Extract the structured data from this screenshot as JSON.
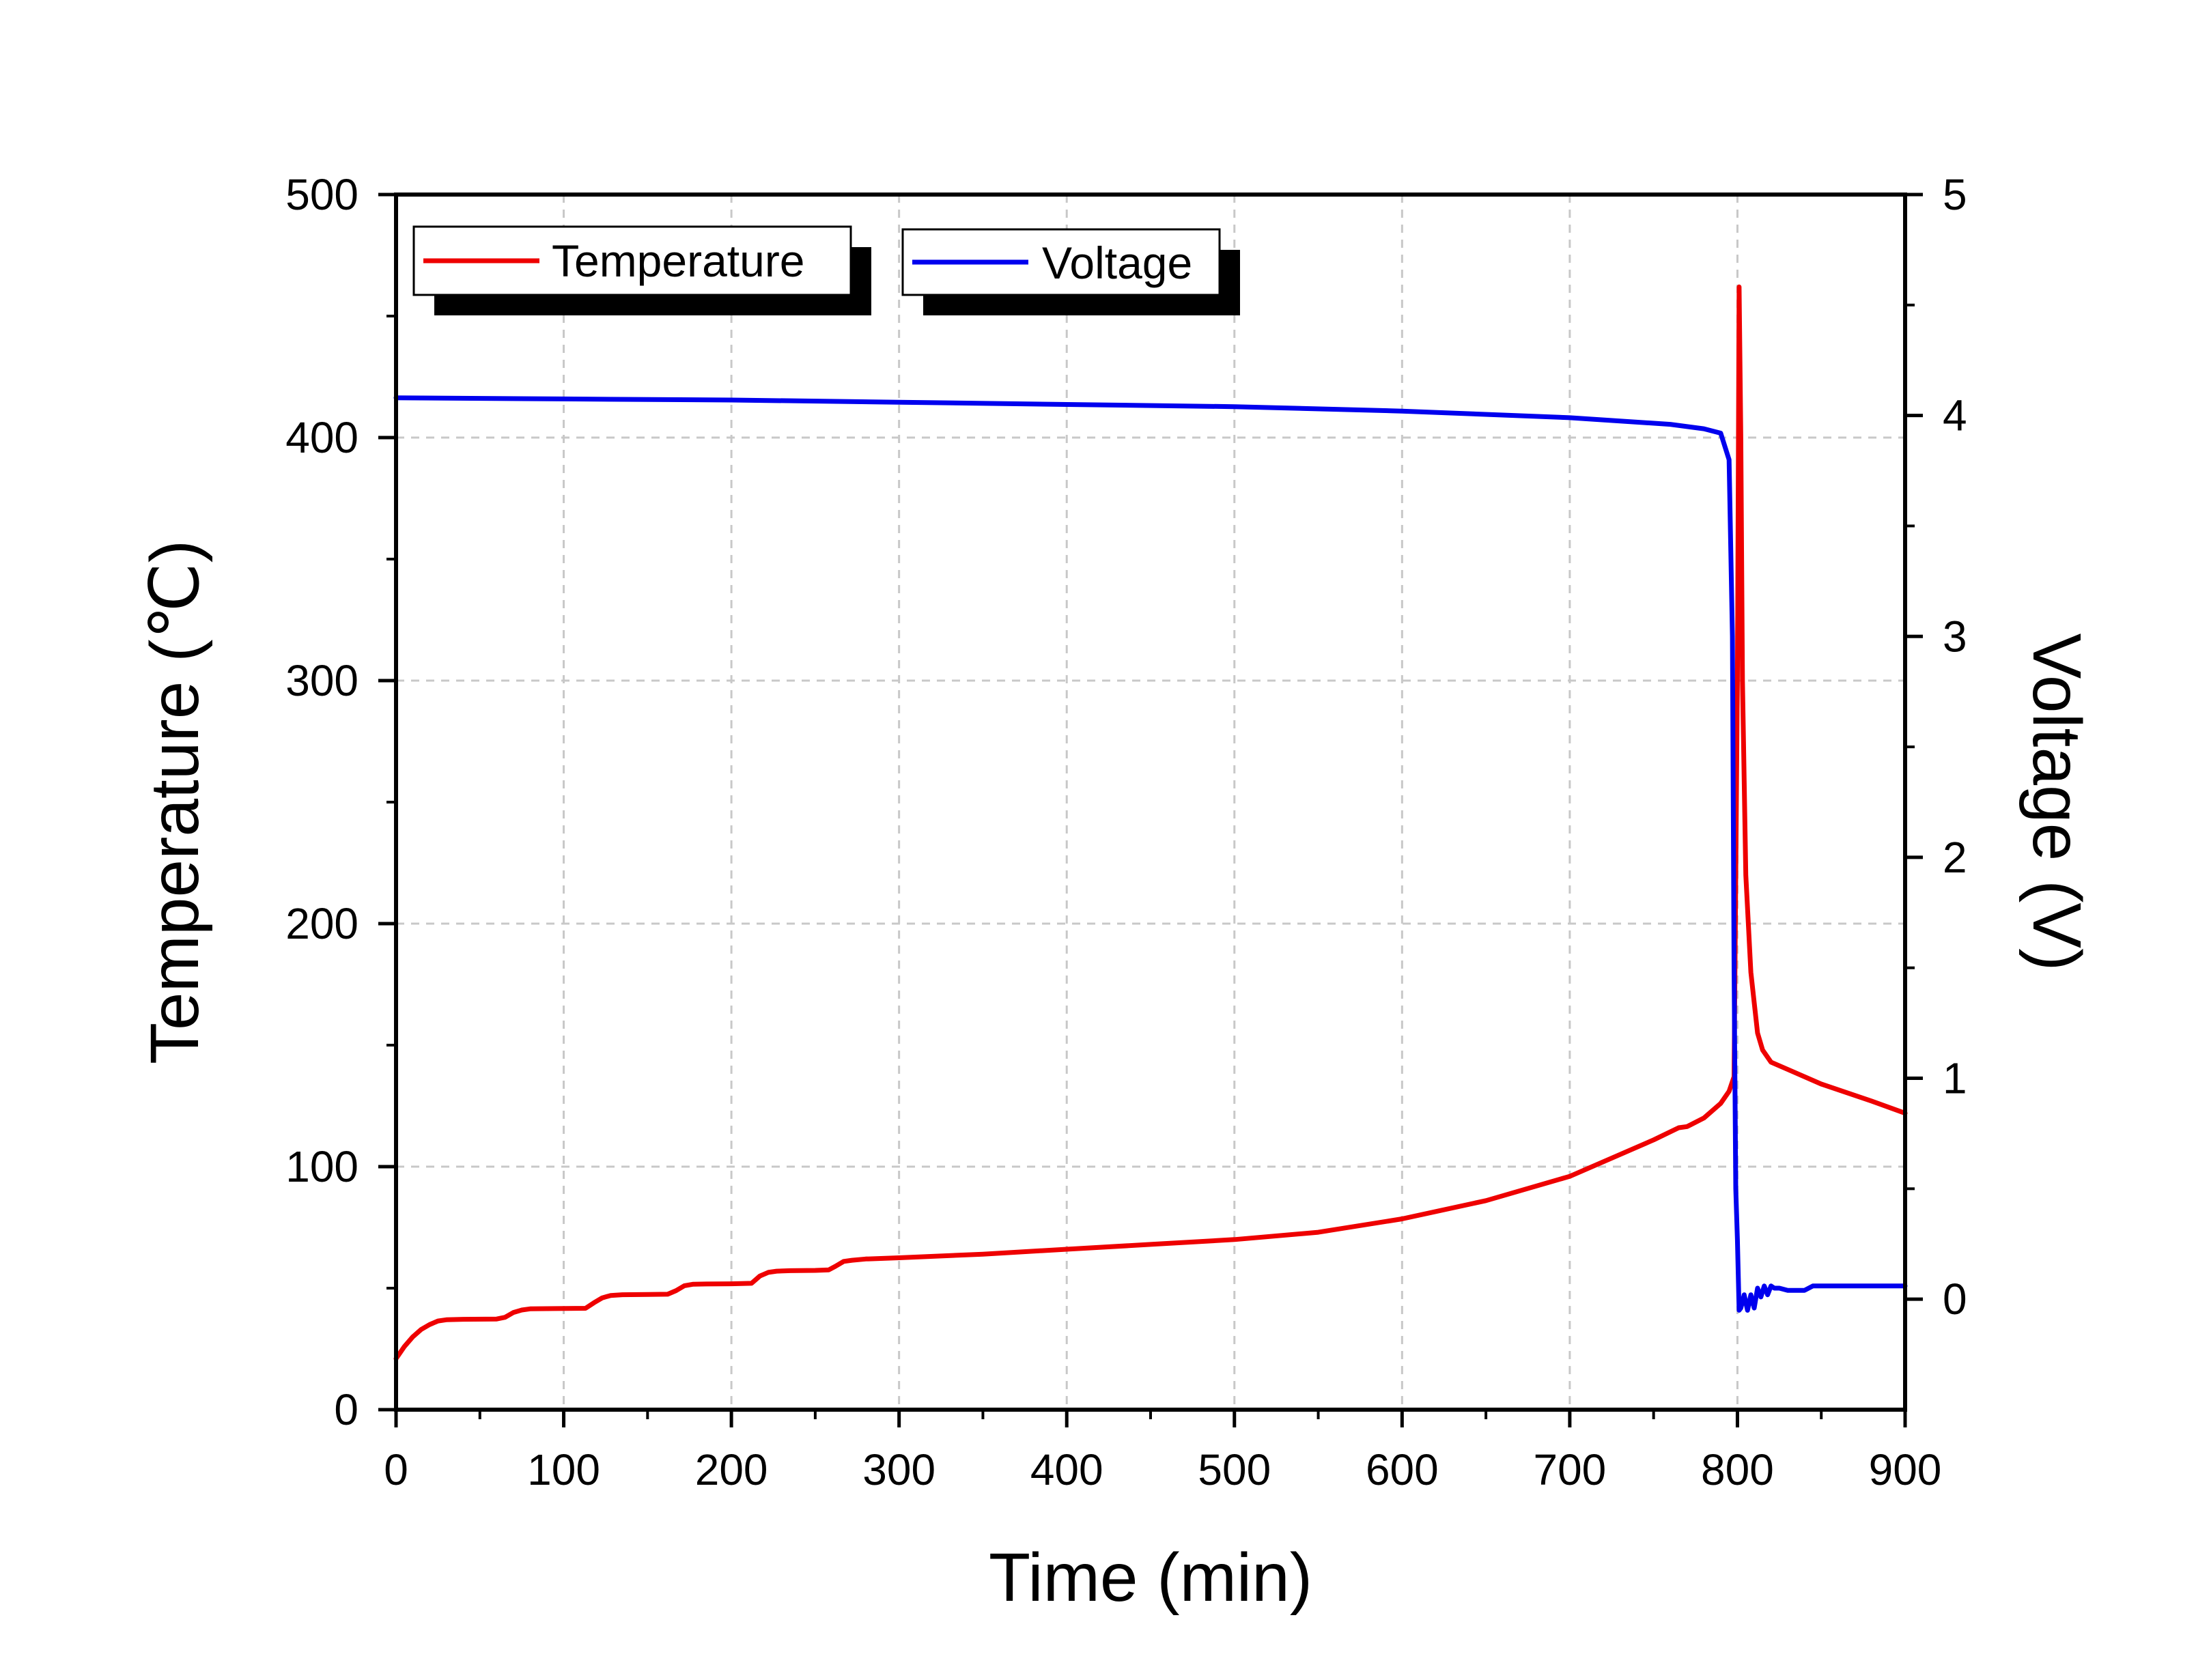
{
  "chart_data": {
    "type": "line",
    "title": "",
    "xlabel": "Time (min)",
    "ylabel_left": "Temperature (℃)",
    "ylabel_right": "Voltage (V)",
    "xlim": [
      0,
      900
    ],
    "ylim_left": [
      0,
      500
    ],
    "ylim_right": [
      -0.5,
      5
    ],
    "x_ticks": [
      "0",
      "100",
      "200",
      "300",
      "400",
      "500",
      "600",
      "700",
      "800",
      "900"
    ],
    "y_left_ticks": [
      "0",
      "100",
      "200",
      "300",
      "400",
      "500"
    ],
    "y_right_ticks": [
      "0",
      "1",
      "2",
      "3",
      "4",
      "5"
    ],
    "grid": true,
    "legend_position": "top-left",
    "series": [
      {
        "name": "Temperature",
        "axis": "left",
        "color": "#ee0000",
        "x": [
          0,
          5,
          10,
          15,
          20,
          25,
          30,
          40,
          60,
          65,
          70,
          75,
          80,
          95,
          113,
          118,
          123,
          128,
          135,
          150,
          162,
          167,
          172,
          177,
          185,
          200,
          212,
          217,
          222,
          227,
          235,
          250,
          258,
          262,
          267,
          272,
          280,
          300,
          350,
          400,
          450,
          500,
          550,
          600,
          650,
          700,
          750,
          765,
          770,
          780,
          790,
          795,
          798,
          800,
          801,
          802,
          803,
          805,
          808,
          812,
          815,
          820,
          830,
          850,
          880,
          900
        ],
        "y": [
          21,
          26,
          30,
          33,
          35,
          36.5,
          37,
          37.2,
          37.3,
          38,
          40,
          41,
          41.5,
          41.6,
          41.7,
          44,
          46,
          47,
          47.3,
          47.4,
          47.5,
          49,
          51,
          51.6,
          51.7,
          51.8,
          52,
          55,
          56.5,
          57,
          57.2,
          57.3,
          57.5,
          59,
          61,
          61.5,
          62,
          62.5,
          64,
          66,
          68,
          70,
          73,
          78.5,
          86,
          96,
          111,
          116,
          116.5,
          120,
          126,
          131,
          137,
          300,
          462,
          400,
          300,
          220,
          180,
          155,
          148,
          143,
          140,
          134,
          127,
          122
        ]
      },
      {
        "name": "Voltage",
        "axis": "right",
        "color": "#0000ee",
        "x": [
          0,
          100,
          200,
          300,
          400,
          500,
          600,
          700,
          760,
          780,
          790,
          795,
          797,
          798,
          799,
          800,
          801,
          802,
          804,
          806,
          808,
          810,
          812,
          814,
          816,
          818,
          820,
          822,
          825,
          830,
          840,
          845,
          850,
          870,
          900
        ],
        "y": [
          4.08,
          4.075,
          4.07,
          4.06,
          4.05,
          4.04,
          4.02,
          3.99,
          3.96,
          3.94,
          3.92,
          3.8,
          3.0,
          1.5,
          0.5,
          0.27,
          -0.05,
          -0.04,
          0.02,
          -0.05,
          0.02,
          -0.04,
          0.05,
          0.01,
          0.06,
          0.02,
          0.06,
          0.05,
          0.05,
          0.04,
          0.04,
          0.06,
          0.06,
          0.06,
          0.06
        ]
      }
    ]
  }
}
